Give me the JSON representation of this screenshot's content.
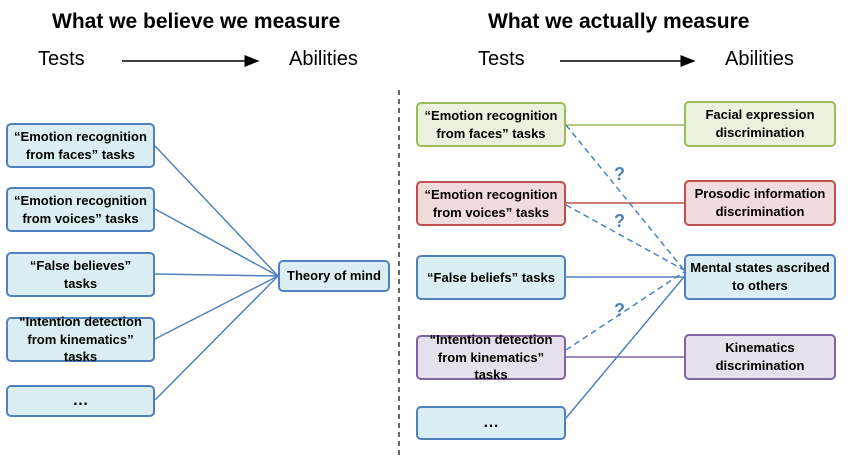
{
  "left_panel": {
    "title": "What we believe we measure",
    "tests_label": "Tests",
    "abilities_label": "Abilities",
    "tests": [
      "“Emotion recognition\nfrom faces” tasks",
      "“Emotion recognition\nfrom voices” tasks",
      "“False believes” tasks",
      "“Intention detection\nfrom  kinematics” tasks",
      "…"
    ],
    "ability": "Theory of mind"
  },
  "right_panel": {
    "title": "What we actually measure",
    "tests_label": "Tests",
    "abilities_label": "Abilities",
    "tests": [
      "“Emotion recognition\nfrom faces” tasks",
      "“Emotion recognition\nfrom voices” tasks",
      "“False beliefs” tasks",
      "“Intention detection\nfrom  kinematics” tasks",
      "…"
    ],
    "abilities": [
      "Facial expression\ndiscrimination",
      "Prosodic information\ndiscrimination",
      "Mental states ascribed\nto others",
      "Kinematics\ndiscrimination"
    ],
    "uncertain_marker": "?"
  },
  "colors": {
    "blue": "#4f81bd",
    "green": "#9bbb59",
    "red": "#c0504d",
    "purple": "#8064a2"
  }
}
